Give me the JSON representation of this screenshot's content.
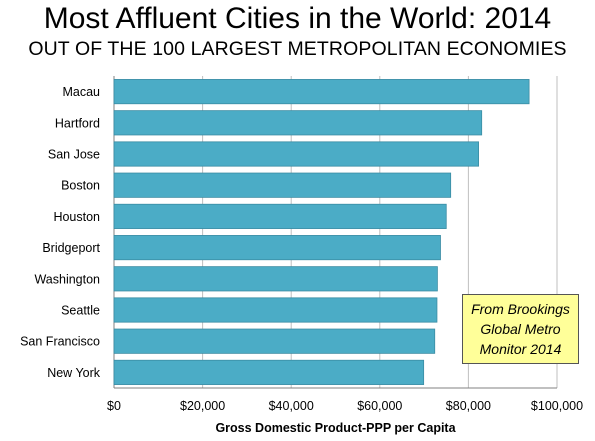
{
  "chart_data": {
    "type": "bar",
    "orientation": "horizontal",
    "title": "Most Affluent Cities in the World: 2014",
    "subtitle": "OUT OF THE 100 LARGEST METROPOLITAN ECONOMIES",
    "categories": [
      "Macau",
      "Hartford",
      "San Jose",
      "Boston",
      "Houston",
      "Bridgeport",
      "Washington",
      "Seattle",
      "San Francisco",
      "New York"
    ],
    "values": [
      93700,
      83000,
      82300,
      76000,
      75000,
      73700,
      73000,
      72900,
      72400,
      69900
    ],
    "xlabel": "Gross Domestic Product-PPP per Capita",
    "ylabel": "",
    "xlim": [
      0,
      100000
    ],
    "x_ticks": [
      "$0",
      "$20,000",
      "$40,000",
      "$60,000",
      "$80,000",
      "$100,000"
    ],
    "grid": "vertical",
    "bar_color": "#4bacc6",
    "annotation": "From Brookings\nGlobal Metro\nMonitor 2014"
  }
}
